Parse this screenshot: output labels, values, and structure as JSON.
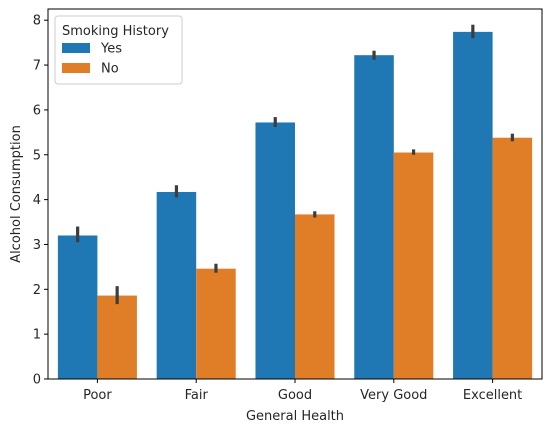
{
  "chart_data": {
    "type": "bar",
    "xlabel": "General Health",
    "ylabel": "Alcohol Consumption",
    "categories": [
      "Poor",
      "Fair",
      "Good",
      "Very Good",
      "Excellent"
    ],
    "ylim": [
      0,
      8.25
    ],
    "yticks": [
      0,
      1,
      2,
      3,
      4,
      5,
      6,
      7,
      8
    ],
    "legend": {
      "title": "Smoking History",
      "placement": "top-left"
    },
    "series": [
      {
        "name": "Yes",
        "color": "#1f77b4",
        "values": [
          3.2,
          4.17,
          5.72,
          7.22,
          7.74
        ],
        "ci": [
          [
            3.05,
            3.4
          ],
          [
            4.05,
            4.32
          ],
          [
            5.62,
            5.84
          ],
          [
            7.12,
            7.32
          ],
          [
            7.6,
            7.9
          ]
        ]
      },
      {
        "name": "No",
        "color": "#e07e27",
        "values": [
          1.86,
          2.46,
          3.67,
          5.05,
          5.38
        ],
        "ci": [
          [
            1.67,
            2.07
          ],
          [
            2.37,
            2.57
          ],
          [
            3.6,
            3.74
          ],
          [
            5.0,
            5.12
          ],
          [
            5.3,
            5.47
          ]
        ]
      }
    ]
  }
}
